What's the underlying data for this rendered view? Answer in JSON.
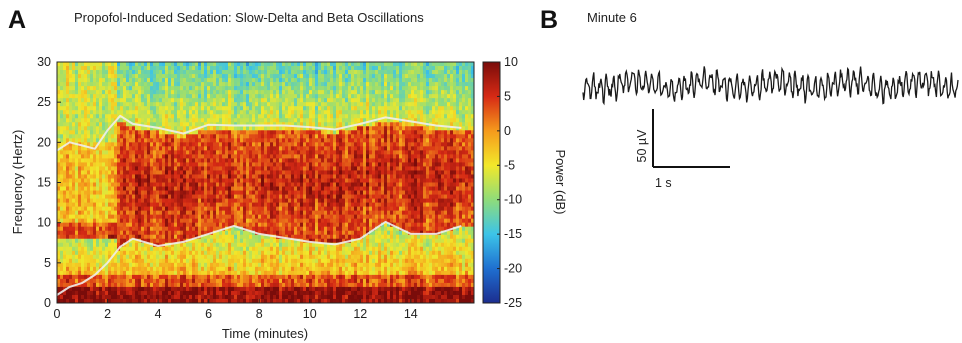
{
  "panel_a": {
    "letter": "A",
    "title": "Propofol-Induced Sedation: Slow-Delta and Beta Oscillations",
    "xlabel": "Time (minutes)",
    "ylabel": "Frequency (Hertz)",
    "colorbar_label": "Power (dB)"
  },
  "panel_b": {
    "letter": "B",
    "title": "Minute 6",
    "scale_y_label": "50 µV",
    "scale_x_label": "1 s"
  },
  "chart_data": [
    {
      "type": "heatmap",
      "title": "Propofol-Induced Sedation: Slow-Delta and Beta Oscillations",
      "xlabel": "Time (minutes)",
      "ylabel": "Frequency (Hertz)",
      "xlim": [
        0,
        16.5
      ],
      "ylim": [
        0,
        30
      ],
      "xticks": [
        0,
        2,
        4,
        6,
        8,
        10,
        12,
        14
      ],
      "yticks": [
        0,
        5,
        10,
        15,
        20,
        25,
        30
      ],
      "colorbar": {
        "label": "Power (dB)",
        "range": [
          -25,
          10
        ],
        "ticks": [
          10,
          5,
          0,
          -5,
          -10,
          -15,
          -20,
          -25
        ],
        "colors": [
          "#1c2d8f",
          "#1f6fd0",
          "#3cc4e8",
          "#8fdc7a",
          "#f2e82a",
          "#f59a1c",
          "#d62a15",
          "#7a0c0a"
        ]
      },
      "upper_boundary_hz": {
        "x": [
          0,
          0.5,
          1,
          1.5,
          2,
          2.5,
          3,
          4,
          5,
          6,
          7,
          8,
          9,
          10,
          11,
          12,
          13,
          14,
          15,
          16
        ],
        "y": [
          19,
          20,
          19.6,
          19.2,
          21.5,
          23.3,
          22.3,
          21.8,
          21.1,
          22.2,
          22.1,
          22.1,
          22.1,
          21.9,
          21.6,
          22.3,
          23.1,
          22.6,
          22.1,
          21.8
        ]
      },
      "lower_boundary_hz": {
        "x": [
          0,
          0.5,
          1,
          1.5,
          2,
          2.5,
          3,
          4,
          5,
          6,
          7,
          8,
          9,
          10,
          11,
          12,
          13,
          14,
          15,
          16
        ],
        "y": [
          1,
          2,
          2.5,
          3.5,
          5,
          7,
          8,
          7.1,
          7.6,
          8.6,
          9.6,
          8.6,
          8.1,
          7.6,
          7.3,
          8,
          10.1,
          8.6,
          8.6,
          9.6
        ]
      }
    },
    {
      "type": "line",
      "title": "Minute 6",
      "description_units": {
        "x": "s",
        "y": "µV"
      },
      "scale_bar": {
        "x_value": 1,
        "x_label": "1 s",
        "y_value": 50,
        "y_label": "50 µV"
      },
      "duration_s": 4.8
    }
  ]
}
